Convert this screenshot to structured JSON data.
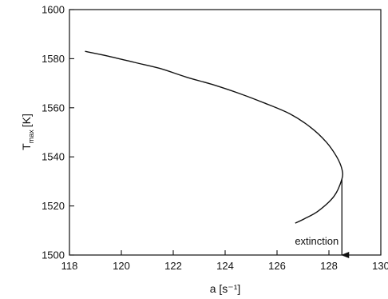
{
  "chart_data": {
    "type": "line",
    "title": "",
    "xlabel": "a [s⁻¹]",
    "ylabel": "T",
    "ylabel_subscript": "max",
    "ylabel_unit": "[K]",
    "xlim": [
      118,
      130
    ],
    "ylim": [
      1500,
      1600
    ],
    "xticks": [
      118,
      120,
      122,
      124,
      126,
      128,
      130
    ],
    "yticks": [
      1500,
      1520,
      1540,
      1560,
      1580,
      1600
    ],
    "grid": false,
    "legend": "none",
    "series": [
      {
        "x": [
          118.6,
          119.5,
          120.5,
          121.5,
          122.5,
          123.5,
          124.5,
          125.5,
          126.5,
          127.3,
          127.9,
          128.3,
          128.5,
          128.5,
          128.2,
          127.6,
          127.1,
          126.7
        ],
        "y": [
          1583,
          1581,
          1578.5,
          1576,
          1572.5,
          1569.5,
          1566,
          1562,
          1557.5,
          1552,
          1546,
          1540,
          1535,
          1531,
          1524,
          1518,
          1515,
          1513
        ]
      }
    ],
    "annotations": [
      {
        "text": "extinction",
        "arrow_x": 128.5,
        "arrow_from_y": 1531,
        "arrow_to_y": 1500
      }
    ],
    "colors": {
      "line": "#111111",
      "axis": "#111111"
    }
  }
}
